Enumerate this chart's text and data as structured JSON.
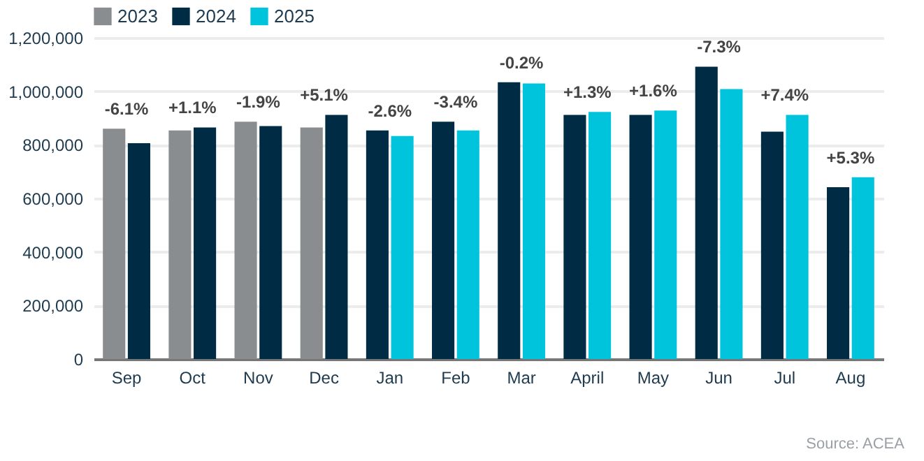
{
  "chart_data": {
    "type": "bar",
    "categories": [
      "Sep",
      "Oct",
      "Nov",
      "Dec",
      "Jan",
      "Feb",
      "Mar",
      "April",
      "May",
      "Jun",
      "Jul",
      "Aug"
    ],
    "series": [
      {
        "name": "2023",
        "color": "#8a8d8f",
        "values": [
          860000,
          854000,
          886000,
          865000,
          null,
          null,
          null,
          null,
          null,
          null,
          null,
          null
        ]
      },
      {
        "name": "2024",
        "color": "#002b44",
        "values": [
          806000,
          865000,
          870000,
          912000,
          854000,
          886000,
          1034000,
          912000,
          912000,
          1092000,
          849000,
          642000
        ]
      },
      {
        "name": "2025",
        "color": "#00c3dc",
        "values": [
          null,
          null,
          null,
          null,
          833000,
          854000,
          1029000,
          923000,
          928000,
          1008000,
          912000,
          679000
        ]
      }
    ],
    "ylim": [
      0,
      1200000
    ],
    "yticks": [
      0,
      {
        "value": 200000,
        "label": "200,000"
      },
      {
        "value": 400000,
        "label": "400,000"
      },
      {
        "value": 600000,
        "label": "600,000"
      },
      {
        "value": 800000,
        "label": "800,000"
      },
      {
        "value": 1000000,
        "label": "1,000,000"
      },
      {
        "value": 1200000,
        "label": "1,200,000"
      }
    ],
    "grid": "y",
    "legend": "top left",
    "annotations": [
      {
        "text": "-6.1%",
        "x": "Sep",
        "y": 860000
      },
      {
        "text": "+1.1%",
        "x": "Oct",
        "y": 865000
      },
      {
        "text": "-1.9%",
        "x": "Nov",
        "y": 886000
      },
      {
        "text": "+5.1%",
        "x": "Dec",
        "y": 912000
      },
      {
        "text": "-2.6%",
        "x": "Jan",
        "y": 854000
      },
      {
        "text": "-3.4%",
        "x": "Feb",
        "y": 886000
      },
      {
        "text": "-0.2%",
        "x": "Mar",
        "y": 1034000
      },
      {
        "text": "+1.3%",
        "x": "April",
        "y": 923000
      },
      {
        "text": "+1.6%",
        "x": "May",
        "y": 928000
      },
      {
        "text": "-7.3%",
        "x": "Jun",
        "y": 1092000
      },
      {
        "text": "+7.4%",
        "x": "Jul",
        "y": 912000
      },
      {
        "text": "+5.3%",
        "x": "Aug",
        "y": 679000
      },
      "Source: ACEA"
    ]
  }
}
